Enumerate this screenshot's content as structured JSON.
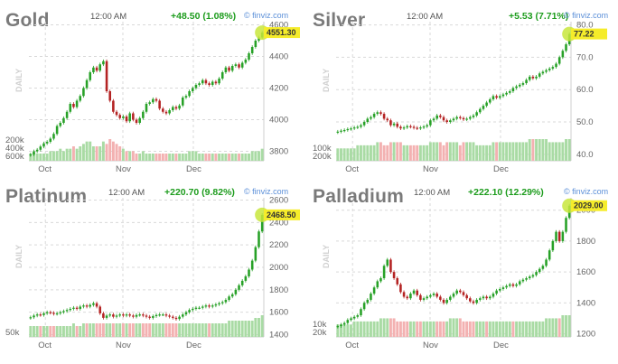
{
  "brand": "© finviz.com",
  "chart_data": [
    {
      "type": "candlestick",
      "title": "Gold",
      "time": "12:00 AM",
      "change": "+48.50 (1.08%)",
      "last_label": "4551.30",
      "y_ticks": [
        3800,
        4000,
        4200,
        4400,
        4600
      ],
      "ylim": [
        3740,
        4620
      ],
      "volume_ticks": [
        "600k",
        "400k",
        "200k"
      ],
      "x_ticks": [
        "Oct",
        "Nov",
        "Dec"
      ],
      "x_label": "DAILY",
      "close": [
        3780,
        3800,
        3810,
        3830,
        3850,
        3860,
        3880,
        3910,
        3960,
        3980,
        4010,
        4050,
        4100,
        4080,
        4120,
        4150,
        4200,
        4250,
        4300,
        4330,
        4310,
        4350,
        4370,
        4180,
        4120,
        4050,
        4030,
        4010,
        4020,
        3990,
        4040,
        4000,
        3980,
        4010,
        4050,
        4100,
        4110,
        4130,
        4120,
        4070,
        4050,
        4040,
        4060,
        4080,
        4070,
        4090,
        4140,
        4150,
        4180,
        4200,
        4220,
        4230,
        4250,
        4230,
        4220,
        4240,
        4230,
        4260,
        4300,
        4330,
        4310,
        4340,
        4350,
        4330,
        4360,
        4380,
        4420,
        4460,
        4500,
        4520,
        4551
      ],
      "volume": [
        3,
        3,
        3,
        3,
        3,
        3,
        4,
        4,
        4,
        5,
        4,
        5,
        5,
        6,
        5,
        6,
        7,
        8,
        8,
        6,
        6,
        6,
        8,
        7,
        9,
        8,
        7,
        6,
        5,
        4,
        4,
        4,
        3,
        3,
        4,
        3,
        3,
        3,
        3,
        3,
        3,
        3,
        3,
        3,
        3,
        3,
        3,
        3,
        4,
        4,
        4,
        3,
        3,
        3,
        3,
        3,
        3,
        3,
        3,
        3,
        3,
        3,
        3,
        3,
        3,
        3,
        3,
        4,
        4,
        4,
        5
      ]
    },
    {
      "type": "candlestick",
      "title": "Silver",
      "time": "12:00 AM",
      "change": "+5.53 (7.71%)",
      "last_label": "77.22",
      "y_ticks": [
        40.0,
        50.0,
        60.0,
        70.0,
        80.0
      ],
      "ylim": [
        38,
        81
      ],
      "volume_ticks": [
        "200k",
        "100k"
      ],
      "x_ticks": [
        "Oct",
        "Nov",
        "Dec"
      ],
      "x_label": "DAILY",
      "close": [
        47,
        47.3,
        47.5,
        47.8,
        48,
        48.3,
        48.5,
        49,
        50,
        51,
        51.5,
        52.5,
        53,
        52.5,
        51,
        50.5,
        49,
        49.5,
        48.5,
        48,
        48.3,
        48.7,
        48.5,
        48.2,
        48,
        48.3,
        48.6,
        49,
        50.5,
        51,
        52,
        51.5,
        50.5,
        50,
        50.5,
        51,
        51.5,
        51.2,
        50.8,
        51,
        51.5,
        52,
        53,
        54,
        55,
        56,
        57,
        58,
        57.5,
        58,
        58.5,
        59,
        59.5,
        60.5,
        61,
        61.5,
        62,
        63,
        64,
        63.5,
        64,
        65,
        65.5,
        66,
        66.5,
        67,
        68,
        70,
        72,
        74,
        77.2
      ],
      "volume": [
        4,
        4,
        4,
        4,
        4,
        4,
        5,
        5,
        5,
        5,
        5,
        5,
        6,
        6,
        5,
        5,
        6,
        6,
        6,
        6,
        5,
        5,
        5,
        5,
        5,
        5,
        5,
        5,
        6,
        6,
        6,
        6,
        5,
        6,
        6,
        6,
        6,
        5,
        6,
        6,
        6,
        6,
        5,
        5,
        5,
        5,
        5,
        6,
        6,
        6,
        6,
        6,
        6,
        6,
        6,
        6,
        6,
        6,
        7,
        7,
        7,
        7,
        7,
        7,
        6,
        6,
        6,
        6,
        6,
        7,
        7
      ]
    },
    {
      "type": "candlestick",
      "title": "Platinum",
      "time": "12:00 AM",
      "change": "+220.70 (9.82%)",
      "last_label": "2468.50",
      "y_ticks": [
        1400,
        1600,
        1800,
        2000,
        2200,
        2400,
        2600
      ],
      "ylim": [
        1380,
        2620
      ],
      "volume_ticks": [
        "50k"
      ],
      "x_ticks": [
        "Oct",
        "Nov",
        "Dec"
      ],
      "x_label": "DAILY",
      "close": [
        1555,
        1570,
        1580,
        1575,
        1590,
        1600,
        1595,
        1585,
        1590,
        1600,
        1610,
        1620,
        1630,
        1640,
        1630,
        1650,
        1660,
        1650,
        1665,
        1680,
        1650,
        1590,
        1550,
        1570,
        1580,
        1560,
        1570,
        1580,
        1570,
        1580,
        1570,
        1560,
        1575,
        1580,
        1570,
        1560,
        1550,
        1565,
        1575,
        1580,
        1580,
        1570,
        1560,
        1550,
        1540,
        1560,
        1580,
        1600,
        1620,
        1630,
        1640,
        1640,
        1650,
        1660,
        1650,
        1660,
        1670,
        1680,
        1690,
        1710,
        1740,
        1760,
        1800,
        1840,
        1880,
        1920,
        1980,
        2060,
        2180,
        2320,
        2468
      ],
      "volume": [
        4,
        4,
        4,
        4,
        4,
        4,
        4,
        4,
        4,
        4,
        4,
        4,
        4,
        5,
        4,
        4,
        5,
        5,
        5,
        5,
        5,
        5,
        5,
        5,
        5,
        5,
        5,
        5,
        5,
        5,
        5,
        5,
        5,
        5,
        5,
        5,
        5,
        5,
        5,
        5,
        5,
        5,
        5,
        5,
        5,
        5,
        5,
        5,
        5,
        5,
        5,
        5,
        5,
        5,
        5,
        5,
        5,
        5,
        5,
        5,
        6,
        6,
        6,
        6,
        6,
        6,
        6,
        6,
        7,
        7,
        8
      ]
    },
    {
      "type": "candlestick",
      "title": "Palladium",
      "time": "12:00 AM",
      "change": "+222.10 (12.29%)",
      "last_label": "2029.00",
      "y_ticks": [
        1200,
        1400,
        1600,
        1800,
        2000
      ],
      "ylim": [
        1180,
        2080
      ],
      "volume_ticks": [
        "20k",
        "10k"
      ],
      "x_ticks": [
        "Oct",
        "Nov",
        "Dec"
      ],
      "x_label": "DAILY",
      "close": [
        1250,
        1260,
        1270,
        1290,
        1300,
        1310,
        1320,
        1360,
        1400,
        1420,
        1460,
        1500,
        1540,
        1560,
        1640,
        1680,
        1600,
        1560,
        1520,
        1470,
        1440,
        1430,
        1460,
        1480,
        1450,
        1420,
        1430,
        1440,
        1450,
        1460,
        1440,
        1420,
        1400,
        1420,
        1440,
        1460,
        1480,
        1470,
        1450,
        1430,
        1410,
        1400,
        1420,
        1430,
        1440,
        1430,
        1440,
        1460,
        1480,
        1490,
        1500,
        1510,
        1520,
        1510,
        1520,
        1540,
        1550,
        1560,
        1570,
        1580,
        1600,
        1620,
        1640,
        1680,
        1740,
        1800,
        1860,
        1800,
        1860,
        1950,
        2029
      ],
      "volume": [
        4,
        4,
        4,
        4,
        4,
        5,
        5,
        5,
        5,
        5,
        5,
        5,
        5,
        6,
        6,
        6,
        6,
        6,
        5,
        5,
        5,
        5,
        5,
        5,
        5,
        5,
        5,
        5,
        5,
        5,
        5,
        5,
        5,
        5,
        6,
        6,
        6,
        6,
        5,
        5,
        5,
        5,
        5,
        5,
        5,
        5,
        5,
        5,
        5,
        5,
        5,
        5,
        5,
        5,
        5,
        5,
        5,
        5,
        5,
        5,
        5,
        5,
        5,
        6,
        6,
        6,
        6,
        6,
        7,
        7,
        7
      ]
    }
  ]
}
